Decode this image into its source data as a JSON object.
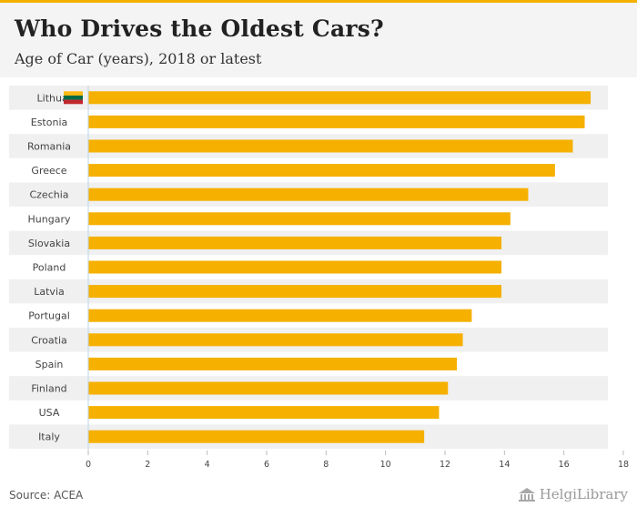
{
  "header": {
    "title": "Who Drives the Oldest Cars?",
    "subtitle": "Age of Car (years), 2018 or latest"
  },
  "footer": {
    "source": "Source: ACEA",
    "brand": "HelgiLibrary"
  },
  "colors": {
    "bar": "#f5b000",
    "accent": "#f5b000",
    "band": "#f0f0f0",
    "axis": "#bcd6e6"
  },
  "icons": {
    "highlight_flag": "lithuania-flag-icon",
    "brand_logo": "library-building-icon"
  },
  "chart_data": {
    "type": "bar",
    "orientation": "horizontal",
    "title": "Who Drives the Oldest Cars?",
    "subtitle": "Age of Car (years), 2018 or latest",
    "xlabel": "",
    "ylabel": "",
    "categories": [
      "Lithuania",
      "Estonia",
      "Romania",
      "Greece",
      "Czechia",
      "Hungary",
      "Slovakia",
      "Poland",
      "Latvia",
      "Portugal",
      "Croatia",
      "Spain",
      "Finland",
      "USA",
      "Italy"
    ],
    "values": [
      16.9,
      16.7,
      16.3,
      15.7,
      14.8,
      14.2,
      13.9,
      13.9,
      13.9,
      12.9,
      12.6,
      12.4,
      12.1,
      11.8,
      11.3
    ],
    "xlim": [
      0,
      18
    ],
    "xticks": [
      0,
      2,
      4,
      6,
      8,
      10,
      12,
      14,
      16,
      18
    ],
    "highlight": "Lithuania",
    "grid": false,
    "legend": "none"
  }
}
